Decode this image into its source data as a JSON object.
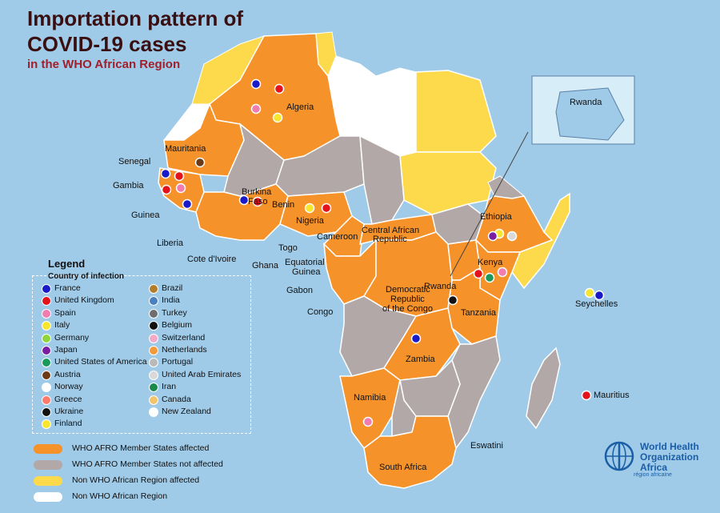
{
  "title_line1": "Importation pattern of",
  "title_line2": "COVID-19 cases",
  "subtitle": "in the WHO African Region",
  "colors": {
    "ocean": "#9fcbe8",
    "afro_affected": "#f6922a",
    "afro_not_affected": "#b3a8a8",
    "non_afro_affected": "#fdd94c",
    "non_afro": "#ffffff"
  },
  "country_labels": {
    "algeria": "Algeria",
    "mauritania": "Mauritania",
    "senegal": "Senegal",
    "gambia": "Gambia",
    "guinea": "Guinea",
    "burkina": "Burkina",
    "faso": "Faso",
    "benin": "Benin",
    "nigeria": "Nigeria",
    "liberia": "Liberia",
    "cote": "Cote d'Ivoire",
    "ghana": "Ghana",
    "togo": "Togo",
    "cameroon": "Cameroon",
    "car1": "Central African",
    "car2": "Republic",
    "ethiopia": "Ethiopia",
    "kenya": "Kenya",
    "rwanda": "Rwanda",
    "rwanda_inset": "Rwanda",
    "eq1": "Equatorial",
    "eq2": "Guinea",
    "gabon": "Gabon",
    "congo": "Congo",
    "drc1": "Democratic",
    "drc2": "Republic",
    "drc3": "of the Congo",
    "tanzania": "Tanzania",
    "seychelles": "Seychelles",
    "zambia": "Zambia",
    "namibia": "Namibia",
    "eswatini": "Eswatini",
    "south_africa": "South Africa",
    "mauritius": "Mauritius"
  },
  "legend": {
    "title": "Legend",
    "subtitle": "Country of infection",
    "col1": [
      {
        "label": "France",
        "color": "#1a1ac8"
      },
      {
        "label": "United Kingdom",
        "color": "#e3121b"
      },
      {
        "label": "Spain",
        "color": "#f07cb0"
      },
      {
        "label": "Italy",
        "color": "#f7e52e"
      },
      {
        "label": "Germany",
        "color": "#8fd63b"
      },
      {
        "label": "Japan",
        "color": "#7a1fa2"
      },
      {
        "label": "United States of America",
        "color": "#1a9a5a"
      },
      {
        "label": "Austria",
        "color": "#6b3b17"
      },
      {
        "label": "Norway",
        "color": "#ffffff"
      },
      {
        "label": "Greece",
        "color": "#ff7a6a"
      },
      {
        "label": "Ukraine",
        "color": "#111111"
      },
      {
        "label": "Finland",
        "color": "#f7e52e"
      }
    ],
    "col2": [
      {
        "label": "Brazil",
        "color": "#b27e2a"
      },
      {
        "label": "India",
        "color": "#4a7fc0"
      },
      {
        "label": "Turkey",
        "color": "#6e6e6e"
      },
      {
        "label": "Belgium",
        "color": "#111111"
      },
      {
        "label": "Switzerland",
        "color": "#f5a9c9"
      },
      {
        "label": "Netherlands",
        "color": "#f59a3a"
      },
      {
        "label": "Portugal",
        "color": "#b9b9b9"
      },
      {
        "label": "United Arab Emirates",
        "color": "#d9d9d9"
      },
      {
        "label": "Iran",
        "color": "#1a8a4a"
      },
      {
        "label": "Canada",
        "color": "#f2c46b"
      },
      {
        "label": "New Zealand",
        "color": "#ffffff"
      }
    ],
    "status": [
      {
        "label": "WHO AFRO Member States affected",
        "color": "#f6922a"
      },
      {
        "label": "WHO AFRO Member States not affected",
        "color": "#b3a8a8"
      },
      {
        "label": "Non WHO African Region affected",
        "color": "#fdd94c"
      },
      {
        "label": "Non WHO African Region",
        "color": "#ffffff"
      }
    ]
  },
  "who_logo": {
    "line1": "World Health",
    "line2": "Organization",
    "line3": "Africa",
    "tagline": "région africaine"
  },
  "markers": [
    {
      "country": "Algeria",
      "color": "#1a1ac8"
    },
    {
      "country": "Algeria",
      "color": "#e3121b"
    },
    {
      "country": "Algeria",
      "color": "#f07cb0"
    },
    {
      "country": "Algeria",
      "color": "#f7e52e"
    },
    {
      "country": "Mauritania",
      "color": "#6b3b17"
    },
    {
      "country": "Senegal",
      "color": "#1a1ac8"
    },
    {
      "country": "Senegal",
      "color": "#e3121b"
    },
    {
      "country": "Gambia",
      "color": "#e3121b"
    },
    {
      "country": "Gambia",
      "color": "#f07cb0"
    },
    {
      "country": "Guinea",
      "color": "#1a1ac8"
    },
    {
      "country": "Burkina Faso",
      "color": "#1a1ac8"
    },
    {
      "country": "Burkina Faso",
      "color": "#e3121b"
    },
    {
      "country": "Nigeria",
      "color": "#f7e52e"
    },
    {
      "country": "Nigeria",
      "color": "#e3121b"
    },
    {
      "country": "Ethiopia",
      "color": "#f7e52e"
    },
    {
      "country": "Ethiopia",
      "color": "#7a1fa2"
    },
    {
      "country": "Ethiopia",
      "color": "#d9d9d9"
    },
    {
      "country": "Kenya",
      "color": "#1a9a5a"
    },
    {
      "country": "Kenya",
      "color": "#e3121b"
    },
    {
      "country": "Kenya",
      "color": "#f07cb0"
    },
    {
      "country": "Tanzania",
      "color": "#111111"
    },
    {
      "country": "Seychelles",
      "color": "#f7e52e"
    },
    {
      "country": "Seychelles",
      "color": "#1a1ac8"
    },
    {
      "country": "Mauritius",
      "color": "#e3121b"
    },
    {
      "country": "Zambia",
      "color": "#1a1ac8"
    },
    {
      "country": "Namibia",
      "color": "#f07cb0"
    }
  ]
}
